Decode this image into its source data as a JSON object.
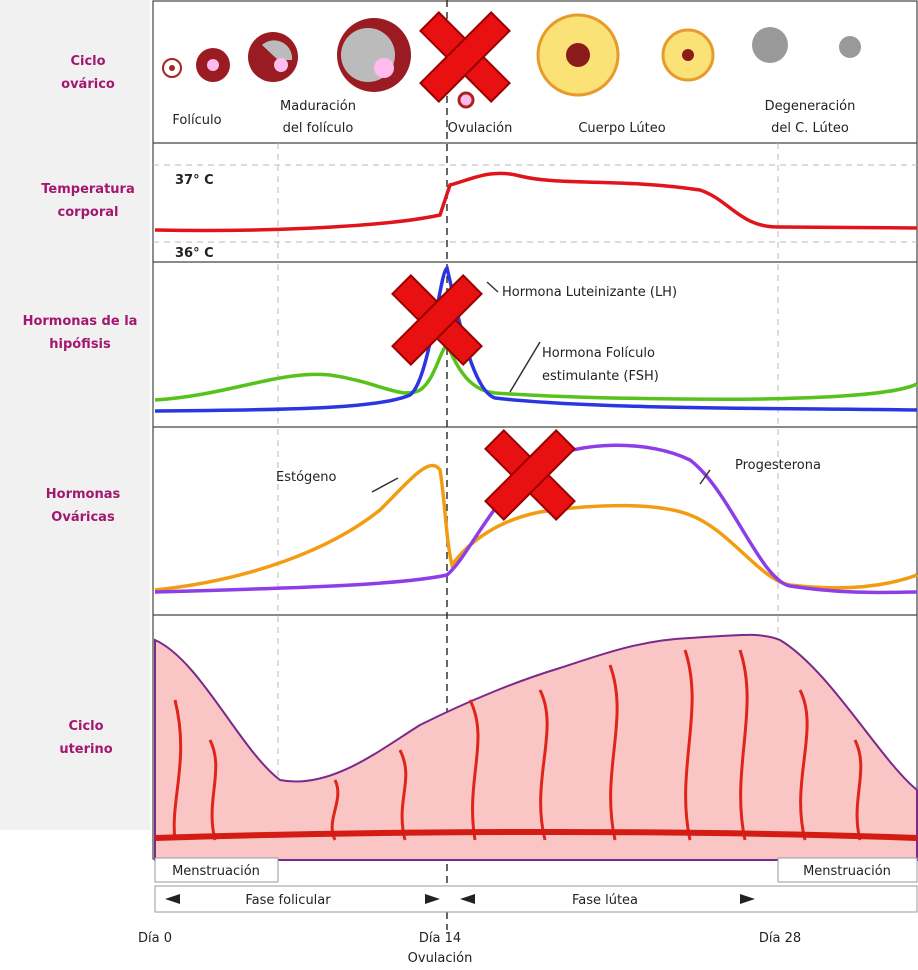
{
  "rows": [
    {
      "label": [
        "Ciclo",
        "ovárico"
      ]
    },
    {
      "label": [
        "Temperatura",
        "corporal"
      ]
    },
    {
      "label": [
        "Hormonas de la",
        "hipófisis"
      ]
    },
    {
      "label": [
        "Hormonas",
        "Ováricas"
      ]
    },
    {
      "label": [
        "Ciclo",
        "uterino"
      ]
    }
  ],
  "ovary_stages": [
    [
      "Folículo"
    ],
    [
      "Maduración",
      "del folículo"
    ],
    [
      "Ovulación"
    ],
    [
      "Cuerpo Lúteo"
    ],
    [
      "Degeneración",
      "del C. Lúteo"
    ]
  ],
  "temperature_marks": [
    "37° C",
    "36° C"
  ],
  "pituitary_labels": [
    [
      "Hormona Luteinizante (LH)"
    ],
    [
      "Hormona Folículo",
      "estimulante (FSH)"
    ]
  ],
  "ovarian_labels": [
    "Estógeno",
    "Progesterona"
  ],
  "menstruation": [
    "Menstruación",
    "Menstruación"
  ],
  "phases": [
    "Fase folicular",
    "Fase lútea"
  ],
  "days": [
    "Día 0",
    "Día 14",
    "Día 28"
  ],
  "ovulation": "Ovulación"
}
